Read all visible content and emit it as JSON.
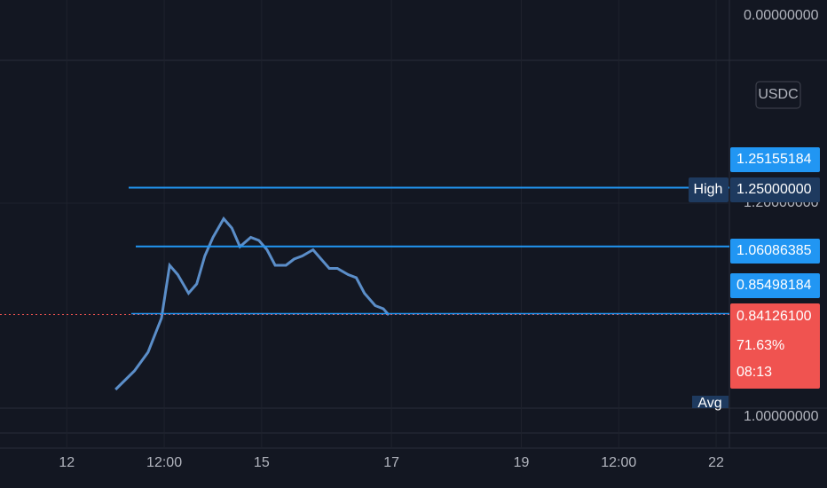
{
  "chart_data": {
    "type": "line",
    "x": [
      18,
      25,
      30,
      35,
      38,
      41,
      45,
      48,
      51,
      54,
      58,
      61,
      64,
      68,
      71,
      74,
      77,
      81,
      84,
      87,
      91,
      94,
      97,
      100,
      104,
      107,
      110,
      114,
      117,
      119
    ],
    "series": [
      {
        "color": "#5b8ec9",
        "values": [
          0.6,
          0.66,
          0.72,
          0.83,
          1.0,
          0.97,
          0.91,
          0.94,
          1.03,
          1.09,
          1.15,
          1.12,
          1.06,
          1.09,
          1.08,
          1.05,
          1.0,
          1.0,
          1.02,
          1.03,
          1.05,
          1.02,
          0.99,
          0.99,
          0.97,
          0.96,
          0.91,
          0.87,
          0.86,
          0.84
        ]
      }
    ],
    "xlim": [
      -24.7,
      244.9
    ],
    "xticks": [
      {
        "value": 0,
        "label": "12"
      },
      {
        "value": 36,
        "label": "12:00"
      },
      {
        "value": 72,
        "label": "15"
      },
      {
        "value": 120,
        "label": "17"
      },
      {
        "value": 168,
        "label": "19"
      },
      {
        "value": 204,
        "label": "12:00"
      },
      {
        "value": 240,
        "label": "22"
      }
    ],
    "ylim": [
      0.54,
      1.66
    ],
    "yticks": [
      {
        "value": 1.2,
        "label": "1.20000000"
      }
    ],
    "grid": true,
    "top_pane_label": "0.00000000",
    "currency": "USDC",
    "high_label": "High",
    "avg_label": "Avg",
    "bottom_pane_label": "1.00000000",
    "levels": [
      {
        "value": 1.25155184,
        "label": "1.25155184",
        "color": "#2196f3",
        "line": false
      },
      {
        "value": 1.25,
        "label": "1.25000000",
        "color": "#1e3a5f",
        "line": true
      },
      {
        "value": 1.06086385,
        "label": "1.06086385",
        "color": "#2196f3",
        "line": true
      },
      {
        "value": 0.85498184,
        "label": "0.85498184",
        "color": "#2196f3",
        "line": false
      }
    ],
    "last_price": {
      "value": 0.841261,
      "label": "0.84126100",
      "change": 71.63,
      "change_label": "71.63%",
      "countdown": "08:13",
      "color": "#f05350"
    }
  }
}
